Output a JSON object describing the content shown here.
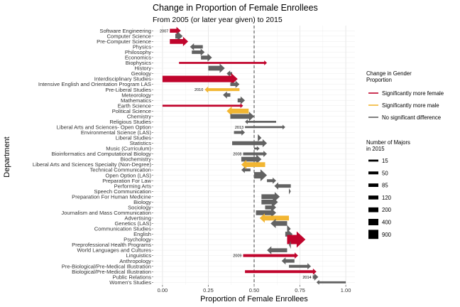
{
  "chart_data": {
    "type": "arrow-range",
    "title": "Change in Proportion of Female Enrollees",
    "subtitle": "From 2005 (or later year given) to 2015",
    "xlabel": "Proportion of Female Enrollees",
    "ylabel": "Department",
    "xlim": [
      -0.05,
      1.05
    ],
    "xticks": [
      0.0,
      0.25,
      0.5,
      0.75,
      1.0
    ],
    "xtick_labels": [
      "0.00",
      "0.25",
      "0.50",
      "0.75",
      "1.00"
    ],
    "reference_line": 0.5,
    "grid": true,
    "colors": {
      "more_female": "#c0042c",
      "more_male": "#f2b632",
      "no_change": "#626262",
      "reference": "#555555"
    },
    "legend_color": {
      "title": [
        "Change in Gender",
        "Proportion"
      ],
      "placement": "right",
      "items": [
        {
          "key": "more_female",
          "label": "Significantly more female"
        },
        {
          "key": "more_male",
          "label": "Significantly more male"
        },
        {
          "key": "no_change",
          "label": "No significant difference"
        }
      ]
    },
    "legend_size": {
      "title": [
        "Number of Majors",
        "in 2015"
      ],
      "placement": "right",
      "items": [
        {
          "label": "15",
          "value": 15
        },
        {
          "label": "50",
          "value": 50
        },
        {
          "label": "85",
          "value": 85
        },
        {
          "label": "120",
          "value": 120
        },
        {
          "label": "200",
          "value": 200
        },
        {
          "label": "400",
          "value": 400
        },
        {
          "label": "900",
          "value": 900
        }
      ]
    },
    "rows": [
      {
        "name": "Software Engineering",
        "from": 0.04,
        "to": 0.1,
        "group": "more_female",
        "n": 120,
        "note": "2007"
      },
      {
        "name": "Computer Science",
        "from": 0.07,
        "to": 0.11,
        "group": "no_change",
        "n": 200
      },
      {
        "name": "Pre-Computer Science",
        "from": 0.04,
        "to": 0.14,
        "group": "more_female",
        "n": 200
      },
      {
        "name": "Physics",
        "from": 0.22,
        "to": 0.15,
        "group": "no_change",
        "n": 85
      },
      {
        "name": "Philosophy",
        "from": 0.16,
        "to": 0.23,
        "group": "no_change",
        "n": 85
      },
      {
        "name": "Economics",
        "from": 0.21,
        "to": 0.27,
        "group": "no_change",
        "n": 120
      },
      {
        "name": "Biophysics",
        "from": 0.09,
        "to": 0.57,
        "group": "more_female",
        "n": 15
      },
      {
        "name": "History",
        "from": 0.25,
        "to": 0.34,
        "group": "no_change",
        "n": 200
      },
      {
        "name": "Geology",
        "from": 0.38,
        "to": 0.35,
        "group": "no_change",
        "n": 50
      },
      {
        "name": "Interdisciplinary Studies",
        "from": 0.0,
        "to": 0.41,
        "group": "more_female",
        "n": 400
      },
      {
        "name": "Intensive English and Orientation Program LAS",
        "from": 0.37,
        "to": 0.42,
        "group": "no_change",
        "n": 85
      },
      {
        "name": "Pre-Liberal Studies",
        "from": 0.42,
        "to": 0.23,
        "group": "more_male",
        "n": 50,
        "note": "2010"
      },
      {
        "name": "Meteorology",
        "from": 0.37,
        "to": 0.33,
        "group": "no_change",
        "n": 85
      },
      {
        "name": "Mathematics",
        "from": 0.41,
        "to": 0.45,
        "group": "no_change",
        "n": 120
      },
      {
        "name": "Earth Science",
        "from": 0.0,
        "to": 0.44,
        "group": "more_female",
        "n": 15
      },
      {
        "name": "Political Science",
        "from": 0.47,
        "to": 0.35,
        "group": "more_male",
        "n": 200
      },
      {
        "name": "Chemistry",
        "from": 0.37,
        "to": 0.5,
        "group": "no_change",
        "n": 200
      },
      {
        "name": "Religious Studies",
        "from": 0.62,
        "to": 0.45,
        "group": "no_change",
        "n": 15
      },
      {
        "name": "Liberal Arts and Sciences- Open Option",
        "from": 0.45,
        "to": 0.67,
        "group": "no_change",
        "n": 15,
        "note": "2013"
      },
      {
        "name": "Environmental Science (LAS)",
        "from": 0.39,
        "to": 0.45,
        "group": "no_change",
        "n": 50
      },
      {
        "name": "Liberal Studies",
        "from": 0.52,
        "to": 0.54,
        "group": "no_change",
        "n": 85
      },
      {
        "name": "Statistics",
        "from": 0.38,
        "to": 0.57,
        "group": "no_change",
        "n": 120
      },
      {
        "name": "Music (Curriculum)",
        "from": 0.5,
        "to": 0.53,
        "group": "no_change",
        "n": 15
      },
      {
        "name": "Bioinformatics and Computational Biology",
        "from": 0.44,
        "to": 0.57,
        "group": "no_change",
        "n": 50,
        "note": "2008"
      },
      {
        "name": "Biochemistry",
        "from": 0.43,
        "to": 0.54,
        "group": "no_change",
        "n": 200
      },
      {
        "name": "Liberal Arts and Sciences Specialty (Non-Degree)",
        "from": 0.56,
        "to": 0.43,
        "group": "more_male",
        "n": 200
      },
      {
        "name": "Technical Communication",
        "from": 0.48,
        "to": 0.43,
        "group": "no_change",
        "n": 50
      },
      {
        "name": "Open Option (LAS)",
        "from": 0.5,
        "to": 0.57,
        "group": "no_change",
        "n": 400
      },
      {
        "name": "Preparation For Law",
        "from": 0.57,
        "to": 0.62,
        "group": "no_change",
        "n": 50
      },
      {
        "name": "Performing Arts",
        "from": 0.7,
        "to": 0.61,
        "group": "no_change",
        "n": 85
      },
      {
        "name": "Speech Communication",
        "from": 0.69,
        "to": 0.7,
        "group": "no_change",
        "n": 50
      },
      {
        "name": "Preparation For Human Medicine",
        "from": 0.54,
        "to": 0.64,
        "group": "no_change",
        "n": 200
      },
      {
        "name": "Biology",
        "from": 0.54,
        "to": 0.63,
        "group": "no_change",
        "n": 200
      },
      {
        "name": "Sociology",
        "from": 0.56,
        "to": 0.62,
        "group": "no_change",
        "n": 120
      },
      {
        "name": "Journalism and Mass Communication",
        "from": 0.51,
        "to": 0.62,
        "group": "no_change",
        "n": 200
      },
      {
        "name": "Advertising",
        "from": 0.69,
        "to": 0.53,
        "group": "more_male",
        "n": 200
      },
      {
        "name": "Genetics (LAS)",
        "from": 0.68,
        "to": 0.59,
        "group": "no_change",
        "n": 200
      },
      {
        "name": "Communication Studies",
        "from": 0.68,
        "to": 0.7,
        "group": "no_change",
        "n": 85
      },
      {
        "name": "English",
        "from": 0.67,
        "to": 0.71,
        "group": "no_change",
        "n": 200
      },
      {
        "name": "Psychology",
        "from": 0.68,
        "to": 0.78,
        "group": "more_female",
        "n": 900
      },
      {
        "name": "Preprofessional Health Programs",
        "from": 0.7,
        "to": 0.69,
        "group": "no_change",
        "n": 120
      },
      {
        "name": "World Languages and Cultures",
        "from": 0.68,
        "to": 0.57,
        "group": "no_change",
        "n": 120
      },
      {
        "name": "Linguistics",
        "from": 0.44,
        "to": 0.74,
        "group": "more_female",
        "n": 50,
        "note": "2009"
      },
      {
        "name": "Anthropology",
        "from": 0.72,
        "to": 0.65,
        "group": "no_change",
        "n": 85
      },
      {
        "name": "Pre-Biological/Pre-Medical Illustration",
        "from": 0.69,
        "to": 0.81,
        "group": "no_change",
        "n": 50
      },
      {
        "name": "Biological/Pre-Medical Illustration",
        "from": 0.45,
        "to": 0.84,
        "group": "more_female",
        "n": 50
      },
      {
        "name": "Public Relations",
        "from": 0.82,
        "to": 0.85,
        "group": "no_change",
        "n": 85,
        "note": "2014"
      },
      {
        "name": "Women's Studies",
        "from": 1.0,
        "to": 0.84,
        "group": "no_change",
        "n": 15
      }
    ]
  }
}
